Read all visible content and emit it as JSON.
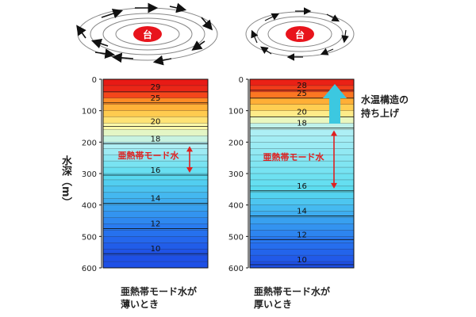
{
  "typhoon_label": "台",
  "ylabel": "水深",
  "ylabel_unit": "（m）",
  "depth_ticks": [
    "0",
    "100",
    "200",
    "300",
    "400",
    "500",
    "600"
  ],
  "colors": {
    "typhoon_fill": "#e8141c",
    "arrow_red": "#e02020",
    "arrow_cyan": "#3cc8e0",
    "mode_water_text": "#e02020"
  },
  "left_column": {
    "caption_line1": "亜熱帯モード水が",
    "caption_line2": "薄いとき",
    "mode_water_label": "亜熱帯モード水",
    "isotherms": [
      {
        "label": "29",
        "depth": 40
      },
      {
        "label": "25",
        "depth": 75
      },
      {
        "label": "20",
        "depth": 150
      },
      {
        "label": "18",
        "depth": 205
      },
      {
        "label": "16",
        "depth": 305
      },
      {
        "label": "14",
        "depth": 395
      },
      {
        "label": "12",
        "depth": 475
      },
      {
        "label": "10",
        "depth": 555
      }
    ],
    "mode_water_range_m": [
      205,
      305
    ]
  },
  "right_column": {
    "caption_line1": "亜熱帯モード水が",
    "caption_line2": "厚いとき",
    "mode_water_label": "亜熱帯モード水",
    "annotation_line1": "水温構造の",
    "annotation_line2": "持ち上げ",
    "isotherms": [
      {
        "label": "28",
        "depth": 35
      },
      {
        "label": "25",
        "depth": 60
      },
      {
        "label": "20",
        "depth": 120
      },
      {
        "label": "18",
        "depth": 155
      },
      {
        "label": "16",
        "depth": 355
      },
      {
        "label": "14",
        "depth": 435
      },
      {
        "label": "12",
        "depth": 510
      },
      {
        "label": "10",
        "depth": 590
      }
    ],
    "mode_water_range_m": [
      155,
      355
    ]
  }
}
